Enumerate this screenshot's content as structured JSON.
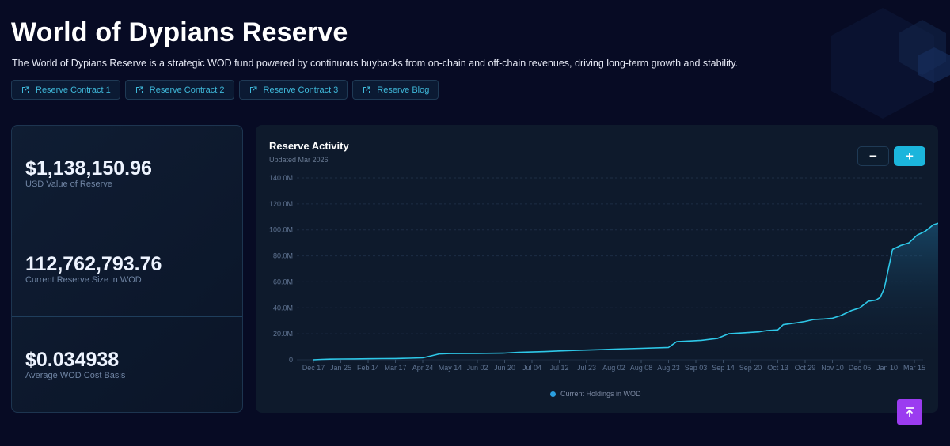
{
  "header": {
    "title": "World of Dypians Reserve",
    "description": "The World of Dypians Reserve is a strategic WOD fund powered by continuous buybacks from on-chain and off-chain revenues, driving long-term growth and stability."
  },
  "links": [
    {
      "label": "Reserve Contract 1",
      "icon": "external-link-icon"
    },
    {
      "label": "Reserve Contract 2",
      "icon": "external-link-icon"
    },
    {
      "label": "Reserve Contract 3",
      "icon": "external-link-icon"
    },
    {
      "label": "Reserve Blog",
      "icon": "external-link-icon"
    }
  ],
  "stats": [
    {
      "value": "$1,138,150.96",
      "label": "USD Value of Reserve"
    },
    {
      "value": "112,762,793.76",
      "label": "Current Reserve Size in WOD"
    },
    {
      "value": "$0.034938",
      "label": "Average WOD Cost Basis"
    }
  ],
  "chart_card": {
    "title": "Reserve Activity",
    "subtitle": "Updated Mar 2026",
    "zoom_out_label": "−",
    "zoom_in_label": "+",
    "scroll_top_icon": "arrow-up-icon"
  },
  "colors": {
    "accent": "#1bb5dc",
    "line": "#2ec8e8",
    "background": "#070b24",
    "scroll_top": "#9b3cf0"
  },
  "chart_data": {
    "type": "area",
    "title": "",
    "xlabel": "",
    "ylabel": "",
    "ylim": [
      0,
      140
    ],
    "y_unit": "M",
    "y_ticks": [
      "0",
      "20.0M",
      "40.0M",
      "60.0M",
      "80.0M",
      "100.0M",
      "120.0M",
      "140.0M"
    ],
    "x_ticks": [
      "Dec 17",
      "Jan 25",
      "Feb 14",
      "Mar 17",
      "Apr 24",
      "May 14",
      "Jun 02",
      "Jun 20",
      "Jul 04",
      "Jul 12",
      "Jul 23",
      "Aug 02",
      "Aug 08",
      "Aug 23",
      "Sep 03",
      "Sep 14",
      "Sep 20",
      "Oct 13",
      "Oct 29",
      "Nov 10",
      "Dec 05",
      "Jan 10",
      "Mar 15"
    ],
    "grid": true,
    "legend_position": "bottom",
    "series": [
      {
        "name": "Current Holdings in WOD",
        "points": [
          [
            0,
            0
          ],
          [
            0.3,
            0.3
          ],
          [
            0.6,
            0.5
          ],
          [
            1,
            0.6
          ],
          [
            1.5,
            0.7
          ],
          [
            2,
            0.8
          ],
          [
            2.5,
            0.9
          ],
          [
            3,
            1
          ],
          [
            3.5,
            1.2
          ],
          [
            4,
            1.5
          ],
          [
            4.3,
            3
          ],
          [
            4.6,
            4.5
          ],
          [
            5,
            4.8
          ],
          [
            6,
            4.9
          ],
          [
            7,
            5.2
          ],
          [
            7.5,
            5.8
          ],
          [
            8,
            6
          ],
          [
            8.5,
            6.3
          ],
          [
            9,
            6.8
          ],
          [
            9.5,
            7.2
          ],
          [
            10,
            7.5
          ],
          [
            10.5,
            7.8
          ],
          [
            11,
            8.2
          ],
          [
            12,
            8.8
          ],
          [
            13,
            9.5
          ],
          [
            13.3,
            14
          ],
          [
            13.8,
            14.5
          ],
          [
            14.2,
            15
          ],
          [
            14.8,
            16.5
          ],
          [
            15.2,
            20
          ],
          [
            15.8,
            20.8
          ],
          [
            16.3,
            21.5
          ],
          [
            16.6,
            22.5
          ],
          [
            17,
            23
          ],
          [
            17.2,
            27
          ],
          [
            17.7,
            28.5
          ],
          [
            18,
            29.5
          ],
          [
            18.3,
            31
          ],
          [
            18.7,
            31.5
          ],
          [
            19,
            32
          ],
          [
            19.3,
            34
          ],
          [
            19.7,
            38
          ],
          [
            20,
            40
          ],
          [
            20.3,
            45
          ],
          [
            20.6,
            46
          ],
          [
            20.75,
            48
          ],
          [
            20.9,
            55
          ],
          [
            21.05,
            70
          ],
          [
            21.2,
            85
          ],
          [
            21.5,
            88
          ],
          [
            21.8,
            90
          ],
          [
            22.1,
            96
          ],
          [
            22.4,
            99
          ],
          [
            22.7,
            104
          ],
          [
            23,
            106
          ],
          [
            23.25,
            109
          ],
          [
            23.45,
            113
          ]
        ]
      }
    ]
  }
}
